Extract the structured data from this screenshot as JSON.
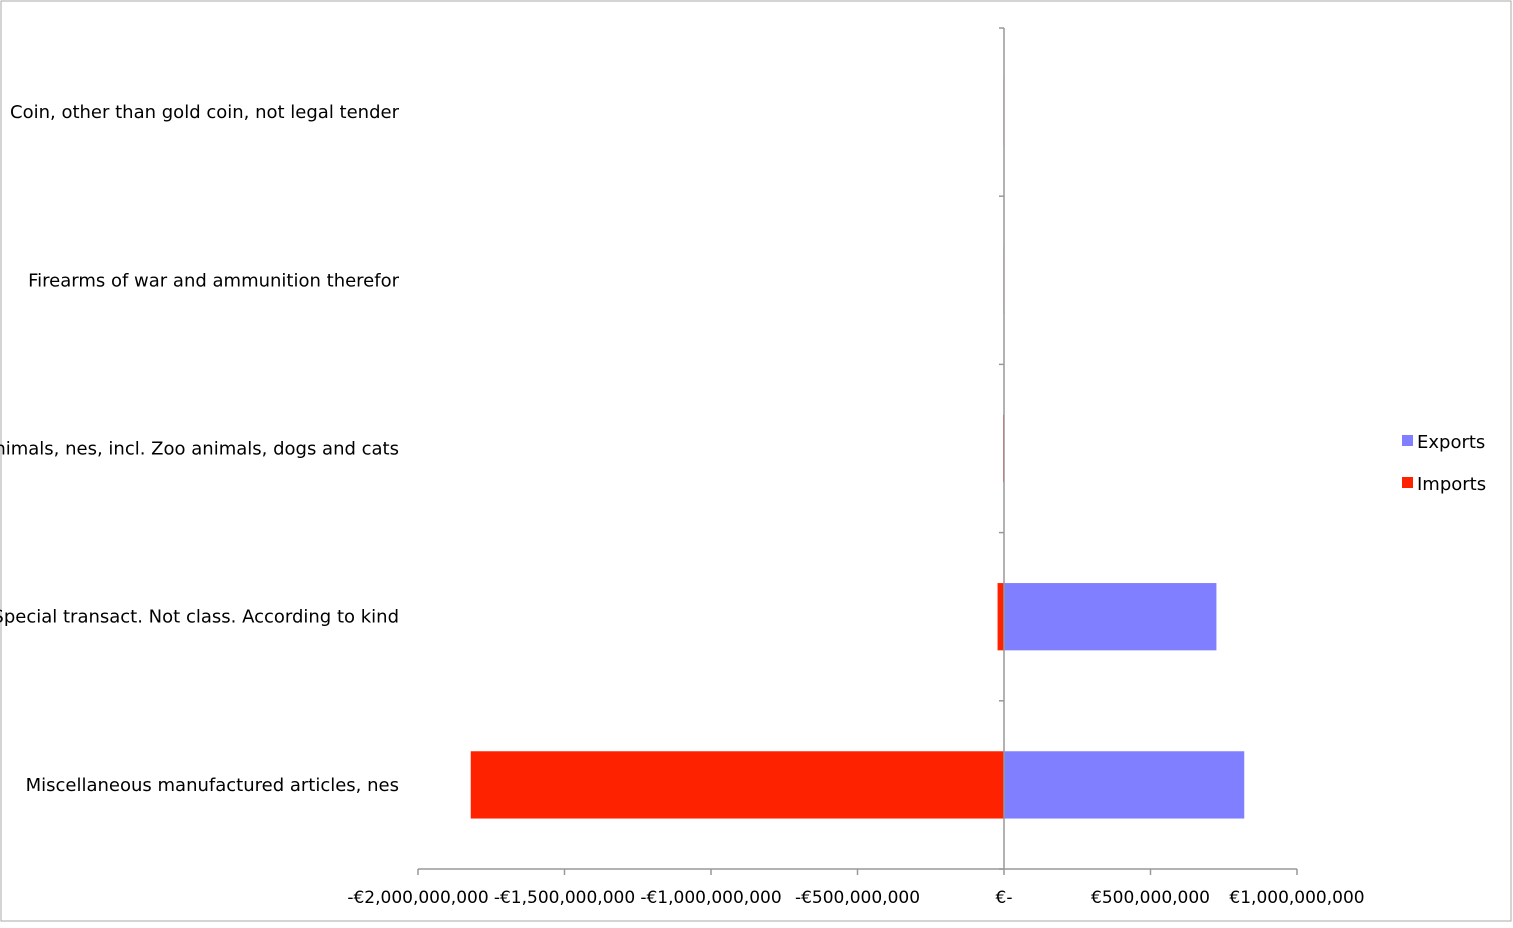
{
  "chart_data": {
    "type": "bar",
    "orientation": "horizontal",
    "stacked": true,
    "categories": [
      "Coin, other than gold coin, not legal tender",
      "Firearms of war and ammunition therefor",
      "Animals, nes, incl. Zoo animals, dogs and cats",
      "Special transact. Not class. According to kind",
      "Miscellaneous manufactured articles, nes"
    ],
    "series": [
      {
        "name": "Exports",
        "color": "#7f7fff",
        "values": [
          0,
          0,
          0,
          725000000,
          820000000
        ]
      },
      {
        "name": "Imports",
        "color": "#ff2200",
        "values": [
          -2000000,
          -2000000,
          -3000000,
          -22000000,
          -1820000000
        ]
      }
    ],
    "xlim": [
      -2000000000,
      1000000000
    ],
    "xticks": [
      -2000000000,
      -1500000000,
      -1000000000,
      -500000000,
      0,
      500000000,
      1000000000
    ],
    "xtick_labels": [
      "-€2,000,000,000",
      "-€1,500,000,000",
      "-€1,000,000,000",
      "-€500,000,000",
      "€-",
      "€500,000,000",
      "€1,000,000,000"
    ],
    "title": "",
    "xlabel": "",
    "ylabel": "",
    "grid": false,
    "legend": {
      "placement": "right",
      "entries": [
        "Exports",
        "Imports"
      ]
    }
  }
}
